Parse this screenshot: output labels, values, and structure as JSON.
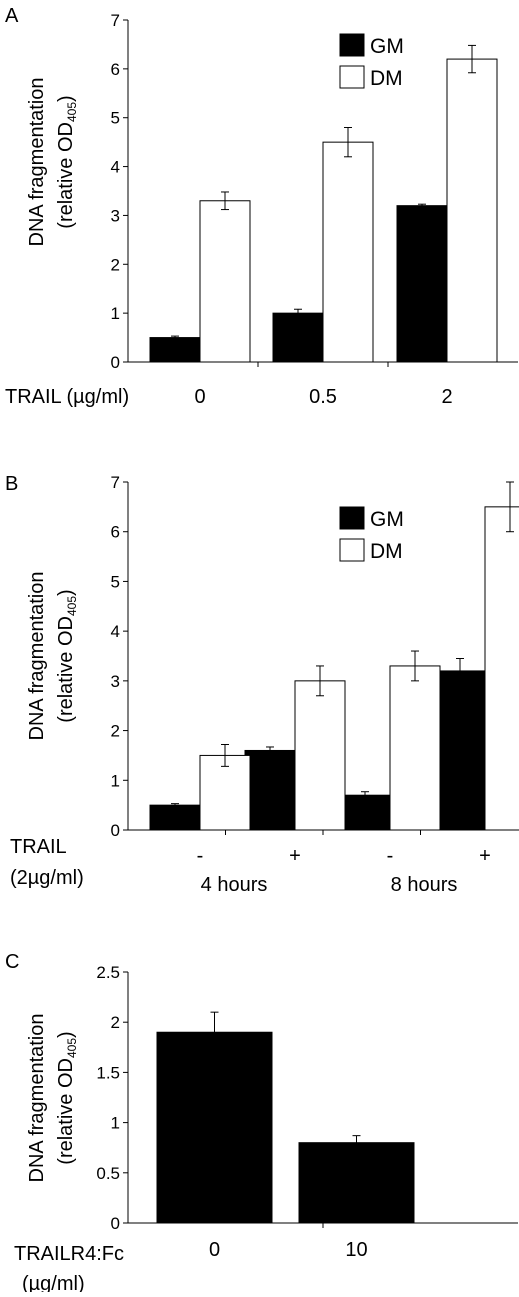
{
  "colors": {
    "gm": "#000000",
    "dm": "#ffffff",
    "stroke": "#000000"
  },
  "chart_data": [
    {
      "panel": "A",
      "type": "bar",
      "ylabel_line1": "DNA fragmentation",
      "ylabel_line2_main": "(relative OD",
      "ylabel_line2_sub": "405",
      "ylabel_line2_end": ")",
      "xlabel": "TRAIL (µg/ml)",
      "categories": [
        "0",
        "0.5",
        "2"
      ],
      "series": [
        {
          "name": "GM",
          "values": [
            0.5,
            1.0,
            3.2
          ],
          "errors": [
            0.03,
            0.08,
            0.03
          ]
        },
        {
          "name": "DM",
          "values": [
            3.3,
            4.5,
            6.2
          ],
          "errors": [
            0.18,
            0.3,
            0.28
          ]
        }
      ],
      "ylim": [
        0,
        7
      ],
      "yticks": [
        "0",
        "1",
        "2",
        "3",
        "4",
        "5",
        "6",
        "7"
      ],
      "legend_position": "top-right"
    },
    {
      "panel": "B",
      "type": "bar",
      "ylabel_line1": "DNA fragmentation",
      "ylabel_line2_main": "(relative OD",
      "ylabel_line2_sub": "405",
      "ylabel_line2_end": ")",
      "xlabel_line1": "TRAIL",
      "xlabel_line2": "(2µg/ml)",
      "categories": [
        "-",
        "+",
        "-",
        "+"
      ],
      "groups": [
        "4 hours",
        "8 hours"
      ],
      "series": [
        {
          "name": "GM",
          "values": [
            0.5,
            1.6,
            0.7,
            3.2
          ],
          "errors": [
            0.03,
            0.07,
            0.07,
            0.25
          ]
        },
        {
          "name": "DM",
          "values": [
            1.5,
            3.0,
            3.3,
            6.5
          ],
          "errors": [
            0.22,
            0.3,
            0.3,
            0.5
          ]
        }
      ],
      "ylim": [
        0,
        7
      ],
      "yticks": [
        "0",
        "1",
        "2",
        "3",
        "4",
        "5",
        "6",
        "7"
      ],
      "legend_position": "top-right"
    },
    {
      "panel": "C",
      "type": "bar",
      "ylabel_line1": "DNA fragmentation",
      "ylabel_line2_main": "(relative OD",
      "ylabel_line2_sub": "405",
      "ylabel_line2_end": ")",
      "xlabel_line1": "TRAILR4:Fc",
      "xlabel_line2": "(µg/ml)",
      "categories": [
        "0",
        "10"
      ],
      "series": [
        {
          "values": [
            1.9,
            0.8
          ],
          "errors": [
            0.2,
            0.07
          ]
        }
      ],
      "ylim": [
        0,
        2.5
      ],
      "yticks": [
        "0",
        "0.5",
        "1",
        "1.5",
        "2",
        "2.5"
      ]
    }
  ]
}
